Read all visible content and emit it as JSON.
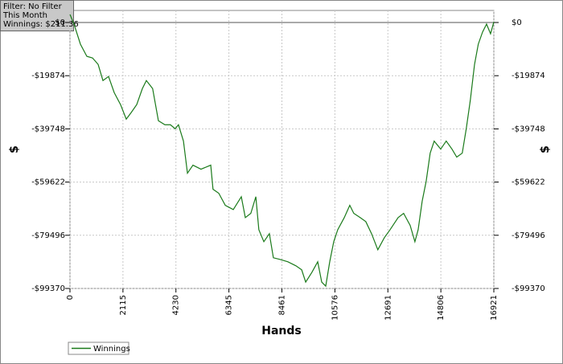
{
  "chart_data": {
    "type": "line",
    "annotations": [
      "Filter: No Filter",
      "This Month",
      "Winnings: $211.36"
    ],
    "xlabel": "Hands",
    "ylabel": "$",
    "y2label": "$",
    "x": [
      0,
      160,
      417,
      674,
      900,
      1124,
      1316,
      1540,
      1766,
      2020,
      2247,
      2440,
      2664,
      2890,
      3050,
      3300,
      3530,
      3790,
      4010,
      4200,
      4330,
      4530,
      4690,
      4910,
      5230,
      5620,
      5710,
      5940,
      6200,
      6520,
      6840,
      7000,
      7220,
      7420,
      7540,
      7740,
      7960,
      8120,
      8380,
      8700,
      9020,
      9250,
      9410,
      9660,
      9890,
      10050,
      10210,
      10370,
      10530,
      10690,
      10950,
      11170,
      11330,
      11590,
      11810,
      12040,
      12290,
      12550,
      12780,
      13100,
      13320,
      13580,
      13770,
      13900,
      14060,
      14220,
      14380,
      14540,
      14800,
      15020,
      15250,
      15440,
      15660,
      15820,
      15980,
      16150,
      16300,
      16470,
      16630,
      16790,
      16921
    ],
    "series": [
      {
        "name": "Winnings",
        "color": "#1a7a1a",
        "values": [
          3000,
          -600,
          -8100,
          -12650,
          -13250,
          -15660,
          -21680,
          -20170,
          -26200,
          -30700,
          -36100,
          -33700,
          -30700,
          -24700,
          -21700,
          -24700,
          -36700,
          -38200,
          -38200,
          -39700,
          -38200,
          -44300,
          -56300,
          -53300,
          -54800,
          -53300,
          -62300,
          -63800,
          -68300,
          -69900,
          -65100,
          -72900,
          -71300,
          -65100,
          -77400,
          -81900,
          -78900,
          -87900,
          -88500,
          -89400,
          -90900,
          -92400,
          -97000,
          -93300,
          -89400,
          -97000,
          -98500,
          -89400,
          -81900,
          -77400,
          -72900,
          -68300,
          -71300,
          -72900,
          -74400,
          -78900,
          -84900,
          -80400,
          -77400,
          -72900,
          -71300,
          -75800,
          -81900,
          -77400,
          -66800,
          -59300,
          -48800,
          -44300,
          -47300,
          -44300,
          -47300,
          -50300,
          -48800,
          -39700,
          -29200,
          -15700,
          -8100,
          -3600,
          -600,
          -4200,
          211.36
        ]
      }
    ],
    "xlim": [
      0,
      16921
    ],
    "xticks": [
      0,
      2115,
      4230,
      6345,
      8461,
      10576,
      12691,
      14806,
      16921
    ],
    "ylim": [
      -99370,
      4500
    ],
    "yticks": [
      {
        "value": 0,
        "label": "$0"
      },
      {
        "value": -19874,
        "label": "-$19874"
      },
      {
        "value": -39748,
        "label": "-$39748"
      },
      {
        "value": -59622,
        "label": "-$59622"
      },
      {
        "value": -79496,
        "label": "-$79496"
      },
      {
        "value": -99370,
        "label": "-$99370"
      }
    ],
    "y2lim": [
      -99370,
      4500
    ],
    "y2ticks": [
      {
        "value": 0,
        "label": "$0"
      },
      {
        "value": -19874,
        "label": "-$19874"
      },
      {
        "value": -39748,
        "label": "-$39748"
      },
      {
        "value": -59622,
        "label": "-$59622"
      },
      {
        "value": -79496,
        "label": "-$79496"
      },
      {
        "value": -99370,
        "label": "-$99370"
      }
    ],
    "grid": true
  }
}
